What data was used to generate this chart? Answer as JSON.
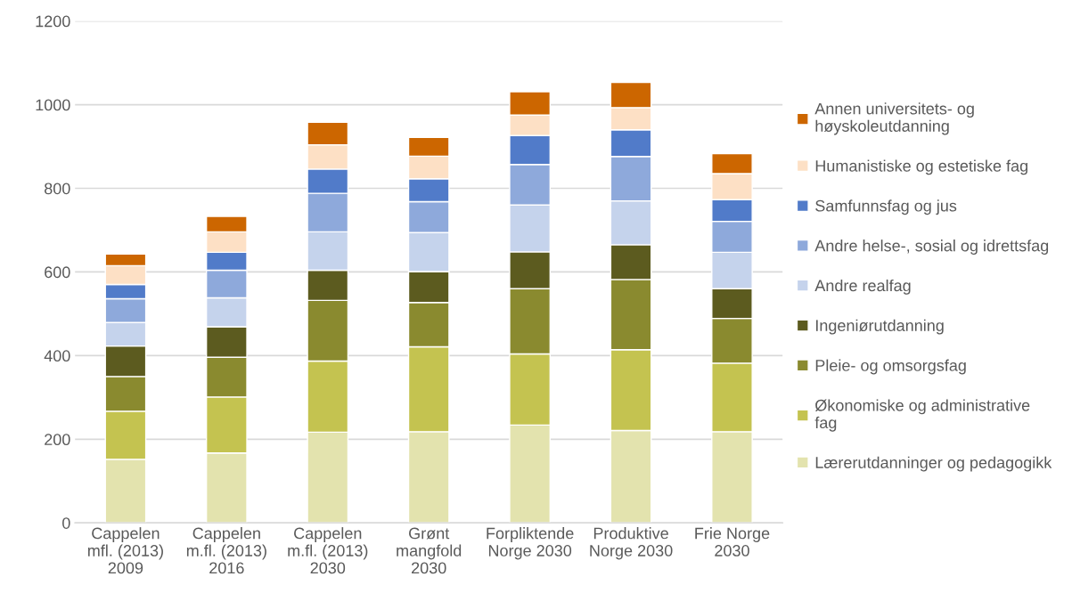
{
  "chart_data": {
    "type": "bar",
    "stacked": true,
    "categories": [
      "Cappelen\nmfl. (2013)\n2009",
      "Cappelen\nm.fl. (2013)\n2016",
      "Cappelen\nm.fl. (2013)\n2030",
      "Grønt\nmangfold\n2030",
      "Forpliktende\nNorge 2030",
      "Produktive\nNorge 2030",
      "Frie Norge\n2030"
    ],
    "series": [
      {
        "name": "Lærerutdanninger og pedagogikk",
        "color": "#e3e3ae",
        "values": [
          152,
          167,
          217,
          218,
          234,
          221,
          218
        ]
      },
      {
        "name": "Økonomiske og administrative\nfag",
        "color": "#c4c350",
        "values": [
          115,
          134,
          170,
          203,
          170,
          193,
          164
        ]
      },
      {
        "name": "Pleie- og omsorgsfag",
        "color": "#8a8a2f",
        "values": [
          83,
          95,
          145,
          106,
          156,
          168,
          107
        ]
      },
      {
        "name": "Ingeniørutdanning",
        "color": "#5c5b1f",
        "values": [
          73,
          73,
          72,
          74,
          88,
          83,
          71
        ]
      },
      {
        "name": "Andre realfag",
        "color": "#c5d3ec",
        "values": [
          56,
          69,
          92,
          93,
          112,
          105,
          87
        ]
      },
      {
        "name": "Andre helse-, sosial og idrettsfag",
        "color": "#8ea9db",
        "values": [
          57,
          66,
          92,
          74,
          97,
          106,
          74
        ]
      },
      {
        "name": "Samfunnsfag og jus",
        "color": "#517bc9",
        "values": [
          34,
          43,
          58,
          55,
          69,
          64,
          52
        ]
      },
      {
        "name": "Humanistiske og estetiske fag",
        "color": "#fde0c5",
        "values": [
          45,
          49,
          58,
          54,
          49,
          53,
          62
        ]
      },
      {
        "name": "Annen universitets- og\nhøyskoleutdanning",
        "color": "#cc6600",
        "values": [
          28,
          37,
          54,
          45,
          56,
          60,
          48
        ]
      }
    ],
    "ylim": [
      0,
      1200
    ],
    "yticks": [
      0,
      200,
      400,
      600,
      800,
      1000,
      1200
    ],
    "grid": "y",
    "legend": "right"
  }
}
